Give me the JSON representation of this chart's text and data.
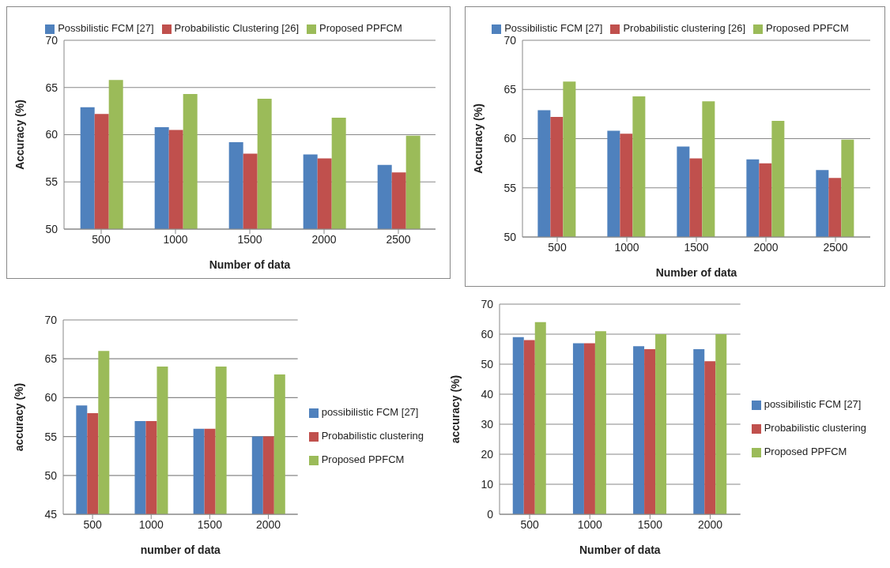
{
  "chart_data": [
    {
      "type": "bar",
      "xlabel": "Number of data",
      "ylabel": "Accuracy (%)",
      "categories": [
        "500",
        "1000",
        "1500",
        "2000",
        "2500"
      ],
      "series": [
        {
          "name": "Possbilistic FCM [27]",
          "color": "#4f81bd",
          "values": [
            62.9,
            60.8,
            59.2,
            57.9,
            56.8
          ]
        },
        {
          "name": "Probabilistic Clustering [26]",
          "color": "#c0504d",
          "values": [
            62.2,
            60.5,
            58.0,
            57.5,
            56.0
          ]
        },
        {
          "name": "Proposed PPFCM",
          "color": "#9bbb59",
          "values": [
            65.8,
            64.3,
            63.8,
            61.8,
            59.9
          ]
        }
      ],
      "ylim": [
        50,
        70
      ],
      "yticks": [
        50,
        55,
        60,
        65,
        70
      ],
      "grid": "y",
      "legend": "top"
    },
    {
      "type": "bar",
      "xlabel": "Number of data",
      "ylabel": "Accuracy (%)",
      "categories": [
        "500",
        "1000",
        "1500",
        "2000",
        "2500"
      ],
      "series": [
        {
          "name": "Possibilistic FCM [27]",
          "color": "#4f81bd",
          "values": [
            62.9,
            60.8,
            59.2,
            57.9,
            56.8
          ]
        },
        {
          "name": "Probabilistic clustering [26]",
          "color": "#c0504d",
          "values": [
            62.2,
            60.5,
            58.0,
            57.5,
            56.0
          ]
        },
        {
          "name": "Proposed PPFCM",
          "color": "#9bbb59",
          "values": [
            65.8,
            64.3,
            63.8,
            61.8,
            59.9
          ]
        }
      ],
      "ylim": [
        50,
        70
      ],
      "yticks": [
        50,
        55,
        60,
        65,
        70
      ],
      "grid": "y",
      "legend": "top"
    },
    {
      "type": "bar",
      "xlabel": "number of data",
      "ylabel": "accuracy (%)",
      "categories": [
        "500",
        "1000",
        "1500",
        "2000"
      ],
      "series": [
        {
          "name": "possibilistic FCM [27]",
          "color": "#4f81bd",
          "values": [
            59,
            57,
            56,
            55
          ]
        },
        {
          "name": "Probabilistic clustering",
          "color": "#c0504d",
          "values": [
            58,
            57,
            56,
            55
          ]
        },
        {
          "name": "Proposed PPFCM",
          "color": "#9bbb59",
          "values": [
            66,
            64,
            64,
            63
          ]
        }
      ],
      "ylim": [
        45,
        70
      ],
      "yticks": [
        45,
        50,
        55,
        60,
        65,
        70
      ],
      "grid": "y",
      "legend": "right"
    },
    {
      "type": "bar",
      "xlabel": "Number of data",
      "ylabel": "accuracy (%)",
      "categories": [
        "500",
        "1000",
        "1500",
        "2000"
      ],
      "series": [
        {
          "name": "possibilistic FCM [27]",
          "color": "#4f81bd",
          "values": [
            59,
            57,
            56,
            55
          ]
        },
        {
          "name": "Probabilistic clustering",
          "color": "#c0504d",
          "values": [
            58,
            57,
            55,
            51
          ]
        },
        {
          "name": "Proposed PPFCM",
          "color": "#9bbb59",
          "values": [
            64,
            61,
            60,
            60
          ]
        }
      ],
      "ylim": [
        0,
        70
      ],
      "yticks": [
        0,
        10,
        20,
        30,
        40,
        50,
        60,
        70
      ],
      "grid": "y",
      "legend": "right"
    }
  ]
}
